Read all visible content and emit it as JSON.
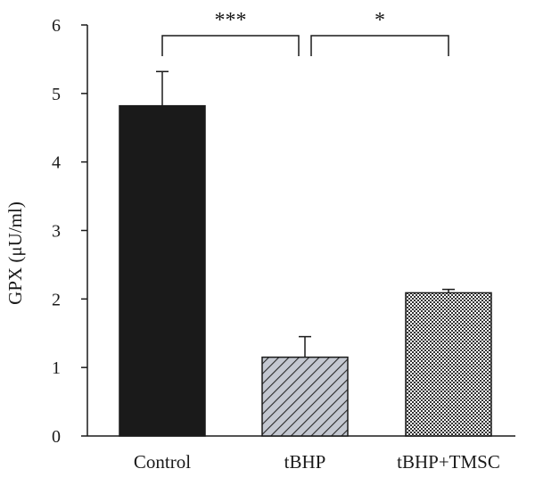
{
  "chart_data": {
    "type": "bar",
    "title": "",
    "xlabel": "",
    "ylabel": "GPX (μU/ml)",
    "ylim": [
      0,
      6
    ],
    "yticks": [
      "0",
      "1",
      "2",
      "3",
      "4",
      "5",
      "6"
    ],
    "categories": [
      "Control",
      "tBHP",
      "tBHP+TMSC"
    ],
    "values": [
      4.82,
      1.15,
      2.09
    ],
    "errors": [
      0.5,
      0.3,
      0.05
    ],
    "bar_fills": [
      "solid",
      "diagonal-hatch",
      "crosshatch"
    ],
    "bar_colors": [
      "#1a1a1a",
      "#b9bec8",
      "#7a7a7a"
    ],
    "grid": false,
    "significance": [
      {
        "from": 0,
        "to": 1,
        "label": "***"
      },
      {
        "from": 1,
        "to": 2,
        "label": "*"
      }
    ]
  }
}
